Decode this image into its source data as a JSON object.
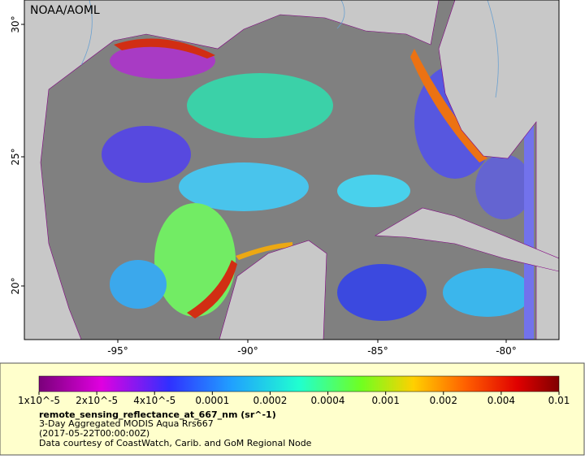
{
  "map": {
    "watermark": "NOAA/AOML",
    "lat_ticks": [
      "30°",
      "25°",
      "20°"
    ],
    "lon_ticks": [
      "-95°",
      "-90°",
      "-85°",
      "-80°"
    ]
  },
  "legend": {
    "colorbar_labels": [
      "1x10^-5",
      "2x10^-5",
      "4x10^-5",
      "0.0001",
      "0.0002",
      "0.0004",
      "0.001",
      "0.002",
      "0.004",
      "0.01"
    ],
    "title": "remote_sensing_reflectance_at_667_nm (sr^-1)",
    "lines": [
      "3-Day Aggregated MODIS Aqua Rrs667",
      "(2017-05-22T00:00:00Z)",
      "Data courtesy of CoastWatch, Carib. and GoM Regional Node"
    ]
  }
}
